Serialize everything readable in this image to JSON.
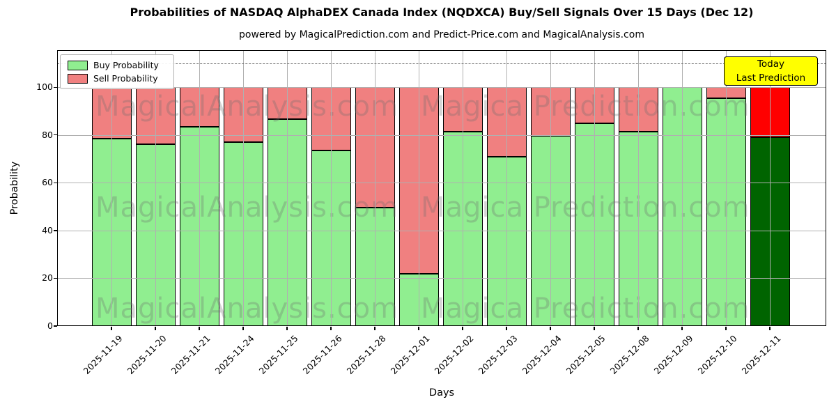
{
  "header": {
    "title": "Probabilities of NASDAQ AlphaDEX Canada Index (NQDXCA) Buy/Sell Signals Over 15 Days (Dec 12)",
    "subtitle": "powered by MagicalPrediction.com and Predict-Price.com and MagicalAnalysis.com"
  },
  "axes": {
    "x_label": "Days",
    "y_label": "Probability"
  },
  "legend": {
    "items": [
      {
        "label": "Buy Probability",
        "color": "#90EE90"
      },
      {
        "label": "Sell Probability",
        "color": "#F08080"
      }
    ]
  },
  "annotations": {
    "today_box": {
      "line1": "Today",
      "line2": "Last Prediction",
      "bg": "#ffff00"
    },
    "watermark_left": "MagicalAnalysis.com",
    "watermark_right": "Magica Prediction.com"
  },
  "chart_data": {
    "type": "bar",
    "stacked": true,
    "title": "Probabilities of NASDAQ AlphaDEX Canada Index (NQDXCA) Buy/Sell Signals Over 15 Days (Dec 12)",
    "xlabel": "Days",
    "ylabel": "Probability",
    "categories": [
      "2025-11-19",
      "2025-11-20",
      "2025-11-21",
      "2025-11-24",
      "2025-11-25",
      "2025-11-26",
      "2025-11-28",
      "2025-12-01",
      "2025-12-02",
      "2025-12-03",
      "2025-12-04",
      "2025-12-05",
      "2025-12-08",
      "2025-12-09",
      "2025-12-10",
      "2025-12-11"
    ],
    "series": [
      {
        "name": "Buy Probability",
        "color": "#90EE90",
        "values": [
          78.5,
          76,
          83.5,
          77,
          86.5,
          73.5,
          49.5,
          22,
          81.5,
          71,
          79.5,
          85,
          81.5,
          100,
          95.5,
          79
        ]
      },
      {
        "name": "Sell Probability",
        "color": "#F08080",
        "values": [
          21.5,
          24,
          16.5,
          23,
          13.5,
          26.5,
          50.5,
          78,
          18.5,
          29,
          20.5,
          15,
          18.5,
          0,
          4.5,
          21
        ]
      }
    ],
    "today": {
      "category": "2025-12-11",
      "buy_color": "#006400",
      "sell_color": "#ff0000"
    },
    "ylim": [
      0,
      115.5
    ],
    "yticks": [
      0,
      20,
      40,
      60,
      80,
      100
    ],
    "dashed_line_y": 110,
    "grid": true,
    "legend_position": "upper left"
  }
}
